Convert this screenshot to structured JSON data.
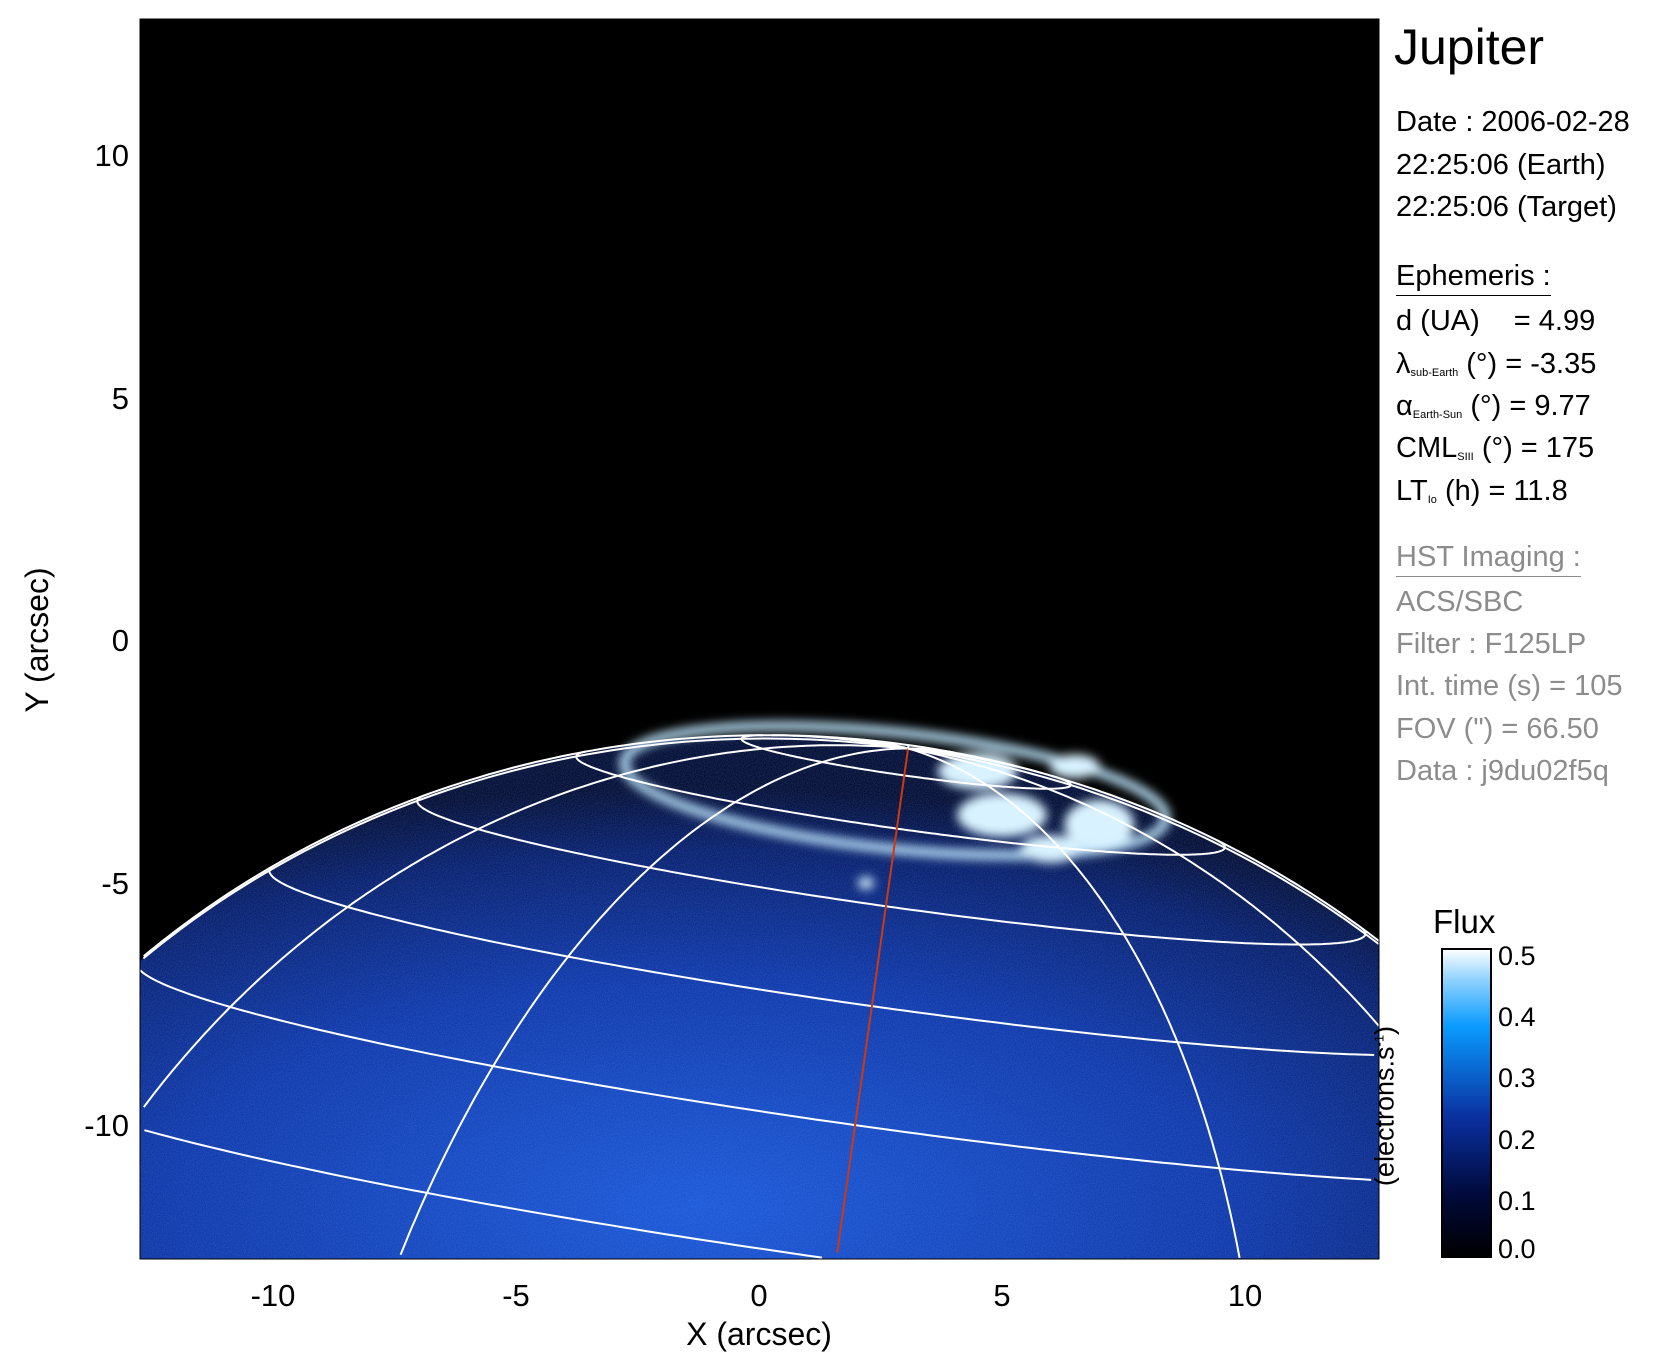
{
  "chart_data": {
    "type": "heatmap",
    "title": "Jupiter",
    "xlabel": "X (arcsec)",
    "ylabel": "Y (arcsec)",
    "xlim": [
      -12.75,
      12.75
    ],
    "ylim": [
      -12.75,
      12.75
    ],
    "xticks": [
      "-10",
      "-5",
      "0",
      "5",
      "10"
    ],
    "xtick_values": [
      -10,
      -5,
      0,
      5,
      10
    ],
    "yticks": [
      "10",
      "5",
      "0",
      "-5",
      "-10"
    ],
    "ytick_values": [
      10,
      5,
      0,
      -5,
      -10
    ],
    "grid_overlay": "planetary latitude/longitude grid (white), central meridian in red",
    "colorbar": {
      "title": "Flux",
      "label": "(electrons.s",
      "label_sup": "-1",
      "label_close": ")",
      "range": [
        0.0,
        0.5
      ],
      "ticks": [
        "0.5",
        "0.4",
        "0.3",
        "0.2",
        "0.1",
        "0.0"
      ],
      "tick_values": [
        0.5,
        0.4,
        0.3,
        0.2,
        0.1,
        0.0
      ],
      "colors": [
        "#000000",
        "#000a3a",
        "#0a2f9e",
        "#0a78e6",
        "#7ecbff",
        "#ffffff"
      ]
    }
  },
  "info": {
    "title": "Jupiter",
    "date": "Date : 2006-02-28",
    "time_earth": "22:25:06 (Earth)",
    "time_target": "22:25:06 (Target)",
    "ephemeris_header": "Ephemeris :",
    "d_label": "d (UA)",
    "d_value": "= 4.99",
    "lambda_sym": "λ",
    "lambda_sub": "sub-Earth",
    "lambda_value": "(°) = -3.35",
    "alpha_sym": "α",
    "alpha_sub": "Earth-Sun",
    "alpha_value": "(°) = 9.77",
    "cml_sym": "CML",
    "cml_sub": "SIII",
    "cml_value": "(°) = 175",
    "lt_sym": "LT",
    "lt_sub": "Io",
    "lt_value": "(h) = 11.8",
    "hst_header": "HST Imaging :",
    "instrument": "ACS/SBC",
    "filter": "Filter : F125LP",
    "int_time": "Int. time (s) = 105",
    "fov": "FOV (\") = 66.50",
    "data_id": "Data : j9du02f5q"
  },
  "colors": {
    "grid": "#ffffff",
    "central_meridian": "#d0380f",
    "background": "#000000",
    "secondary_text": "#8c8c8c"
  }
}
